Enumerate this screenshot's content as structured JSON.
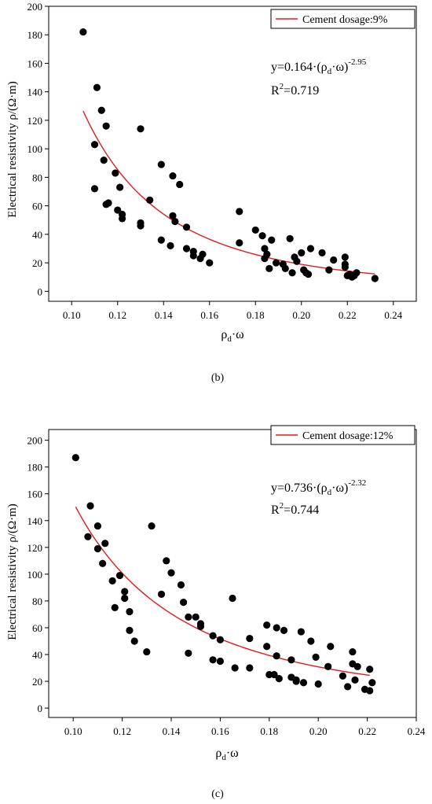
{
  "chart_data": [
    {
      "type": "scatter",
      "panel_label": "(b)",
      "xlabel_main": "ρ",
      "xlabel_sub": "d",
      "xlabel_tail": "·ω",
      "ylabel": "Electrical resistivity ρ/(Ω·m)",
      "xlim": [
        0.09,
        0.25
      ],
      "ylim": [
        -7,
        200
      ],
      "xticks": [
        0.1,
        0.12,
        0.14,
        0.16,
        0.18,
        0.2,
        0.22,
        0.24
      ],
      "xtick_labels": [
        "0.10",
        "0.12",
        "0.14",
        "0.16",
        "0.18",
        "0.20",
        "0.22",
        "0.24"
      ],
      "yticks": [
        0,
        20,
        40,
        60,
        80,
        100,
        120,
        140,
        160,
        180,
        200
      ],
      "ytick_labels": [
        "0",
        "20",
        "40",
        "60",
        "80",
        "100",
        "120",
        "140",
        "160",
        "180",
        "200"
      ],
      "legend": {
        "label": "Cement dosage:9%",
        "position": "top-right"
      },
      "fit": {
        "a": 0.164,
        "b": -2.95,
        "x_range": [
          0.105,
          0.232
        ],
        "color": "#e41a1c"
      },
      "equation": {
        "prefix": "y=0.164·(ρ",
        "sub": "d",
        "mid": "·ω)",
        "sup": "-2.95"
      },
      "r2": {
        "prefix": "R",
        "sup": "2",
        "value": "=0.719"
      },
      "points": [
        [
          0.105,
          182
        ],
        [
          0.11,
          103
        ],
        [
          0.11,
          72
        ],
        [
          0.111,
          143
        ],
        [
          0.113,
          127
        ],
        [
          0.114,
          92
        ],
        [
          0.115,
          116
        ],
        [
          0.115,
          61
        ],
        [
          0.116,
          62
        ],
        [
          0.119,
          83
        ],
        [
          0.12,
          57
        ],
        [
          0.121,
          73
        ],
        [
          0.122,
          51
        ],
        [
          0.122,
          54
        ],
        [
          0.13,
          114
        ],
        [
          0.13,
          46
        ],
        [
          0.13,
          48
        ],
        [
          0.134,
          64
        ],
        [
          0.139,
          89
        ],
        [
          0.139,
          36
        ],
        [
          0.143,
          32
        ],
        [
          0.144,
          53
        ],
        [
          0.144,
          81
        ],
        [
          0.145,
          49
        ],
        [
          0.147,
          75
        ],
        [
          0.15,
          45
        ],
        [
          0.15,
          30
        ],
        [
          0.153,
          25
        ],
        [
          0.153,
          28
        ],
        [
          0.156,
          23
        ],
        [
          0.157,
          26
        ],
        [
          0.16,
          20
        ],
        [
          0.173,
          56
        ],
        [
          0.173,
          34
        ],
        [
          0.18,
          43
        ],
        [
          0.183,
          39
        ],
        [
          0.184,
          30
        ],
        [
          0.184,
          23
        ],
        [
          0.185,
          26
        ],
        [
          0.186,
          16
        ],
        [
          0.187,
          36
        ],
        [
          0.189,
          20
        ],
        [
          0.192,
          19
        ],
        [
          0.193,
          16
        ],
        [
          0.195,
          37
        ],
        [
          0.196,
          13
        ],
        [
          0.197,
          24
        ],
        [
          0.198,
          21
        ],
        [
          0.2,
          27
        ],
        [
          0.201,
          15
        ],
        [
          0.202,
          13
        ],
        [
          0.203,
          12
        ],
        [
          0.204,
          30
        ],
        [
          0.209,
          27
        ],
        [
          0.212,
          15
        ],
        [
          0.214,
          22
        ],
        [
          0.219,
          24
        ],
        [
          0.219,
          19
        ],
        [
          0.219,
          17
        ],
        [
          0.22,
          11
        ],
        [
          0.221,
          12
        ],
        [
          0.222,
          10
        ],
        [
          0.223,
          11
        ],
        [
          0.224,
          13
        ],
        [
          0.232,
          9
        ]
      ]
    },
    {
      "type": "scatter",
      "panel_label": "(c)",
      "xlabel_main": "ρ",
      "xlabel_sub": "d",
      "xlabel_tail": "·ω",
      "ylabel": "Electrical resistivity ρ/(Ω·m)",
      "xlim": [
        0.09,
        0.24
      ],
      "ylim": [
        -7,
        208
      ],
      "xticks": [
        0.1,
        0.12,
        0.14,
        0.16,
        0.18,
        0.2,
        0.22,
        0.24
      ],
      "xtick_labels": [
        "0.10",
        "0.12",
        "0.14",
        "0.16",
        "0.18",
        "0.20",
        "0.22",
        "0.24"
      ],
      "yticks": [
        0,
        20,
        40,
        60,
        80,
        100,
        120,
        140,
        160,
        180,
        200
      ],
      "ytick_labels": [
        "0",
        "20",
        "40",
        "60",
        "80",
        "100",
        "120",
        "140",
        "160",
        "180",
        "200"
      ],
      "legend": {
        "label": "Cement dosage:12%",
        "position": "top-right"
      },
      "fit": {
        "a": 0.736,
        "b": -2.32,
        "x_range": [
          0.101,
          0.221
        ],
        "color": "#e41a1c"
      },
      "equation": {
        "prefix": "y=0.736·(ρ",
        "sub": "d",
        "mid": "·ω)",
        "sup": "-2.32"
      },
      "r2": {
        "prefix": "R",
        "sup": "2",
        "value": "=0.744"
      },
      "points": [
        [
          0.101,
          187
        ],
        [
          0.106,
          128
        ],
        [
          0.107,
          151
        ],
        [
          0.11,
          119
        ],
        [
          0.11,
          136
        ],
        [
          0.112,
          108
        ],
        [
          0.113,
          123
        ],
        [
          0.116,
          95
        ],
        [
          0.117,
          75
        ],
        [
          0.119,
          99
        ],
        [
          0.121,
          82
        ],
        [
          0.121,
          87
        ],
        [
          0.123,
          72
        ],
        [
          0.123,
          58
        ],
        [
          0.125,
          50
        ],
        [
          0.13,
          42
        ],
        [
          0.132,
          136
        ],
        [
          0.136,
          85
        ],
        [
          0.138,
          110
        ],
        [
          0.14,
          101
        ],
        [
          0.144,
          92
        ],
        [
          0.145,
          79
        ],
        [
          0.147,
          68
        ],
        [
          0.147,
          41
        ],
        [
          0.15,
          68
        ],
        [
          0.152,
          61
        ],
        [
          0.152,
          63
        ],
        [
          0.157,
          54
        ],
        [
          0.157,
          36
        ],
        [
          0.16,
          35
        ],
        [
          0.16,
          51
        ],
        [
          0.165,
          82
        ],
        [
          0.166,
          30
        ],
        [
          0.172,
          52
        ],
        [
          0.172,
          30
        ],
        [
          0.179,
          46
        ],
        [
          0.179,
          62
        ],
        [
          0.18,
          25
        ],
        [
          0.182,
          25
        ],
        [
          0.183,
          60
        ],
        [
          0.183,
          39
        ],
        [
          0.184,
          22
        ],
        [
          0.186,
          58
        ],
        [
          0.189,
          36
        ],
        [
          0.189,
          23
        ],
        [
          0.191,
          20
        ],
        [
          0.191,
          21
        ],
        [
          0.193,
          57
        ],
        [
          0.194,
          19
        ],
        [
          0.197,
          50
        ],
        [
          0.199,
          38
        ],
        [
          0.2,
          18
        ],
        [
          0.204,
          31
        ],
        [
          0.205,
          46
        ],
        [
          0.21,
          24
        ],
        [
          0.212,
          16
        ],
        [
          0.214,
          42
        ],
        [
          0.214,
          33
        ],
        [
          0.215,
          21
        ],
        [
          0.216,
          31
        ],
        [
          0.219,
          14
        ],
        [
          0.221,
          29
        ],
        [
          0.221,
          13
        ],
        [
          0.222,
          19
        ]
      ]
    }
  ]
}
